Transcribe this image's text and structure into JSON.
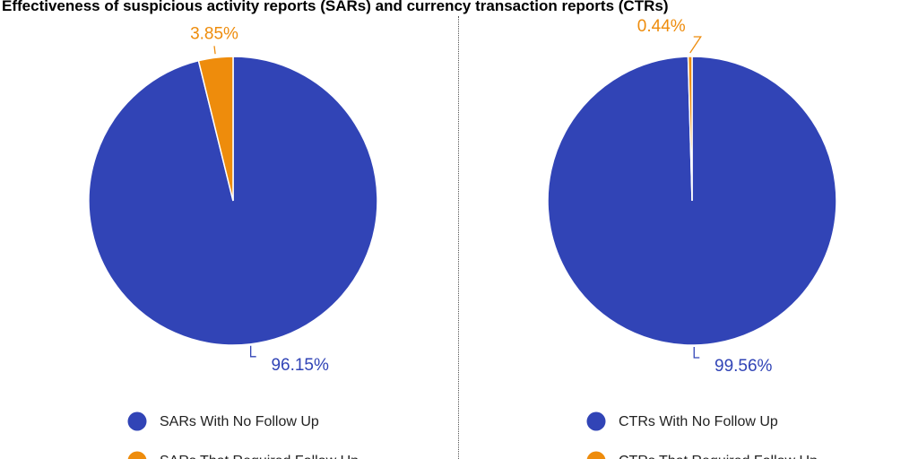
{
  "title": "Effectiveness of suspicious activity reports (SARs) and currency transaction reports (CTRs)",
  "colors": {
    "no_follow_up": "#3144b6",
    "required_follow_up": "#ee8c0c"
  },
  "chart_data": [
    {
      "type": "pie",
      "title": "",
      "slices": [
        {
          "label": "SARs With No Follow Up",
          "value": 96.15,
          "display": "96.15%",
          "color": "#3144b6"
        },
        {
          "label": "SARs That Required Follow Up",
          "value": 3.85,
          "display": "3.85%",
          "color": "#ee8c0c"
        }
      ],
      "legend": [
        "SARs With No Follow Up",
        "SARs That Required Follow Up"
      ],
      "legend_position": "bottom"
    },
    {
      "type": "pie",
      "title": "",
      "slices": [
        {
          "label": "CTRs With No Follow Up",
          "value": 99.56,
          "display": "99.56%",
          "color": "#3144b6"
        },
        {
          "label": "CTRs That Required Follow Up",
          "value": 0.44,
          "display": "0.44%",
          "color": "#ee8c0c"
        }
      ],
      "legend": [
        "CTRs With No Follow Up",
        "CTRs That Required Follow Up"
      ],
      "legend_position": "bottom"
    }
  ]
}
